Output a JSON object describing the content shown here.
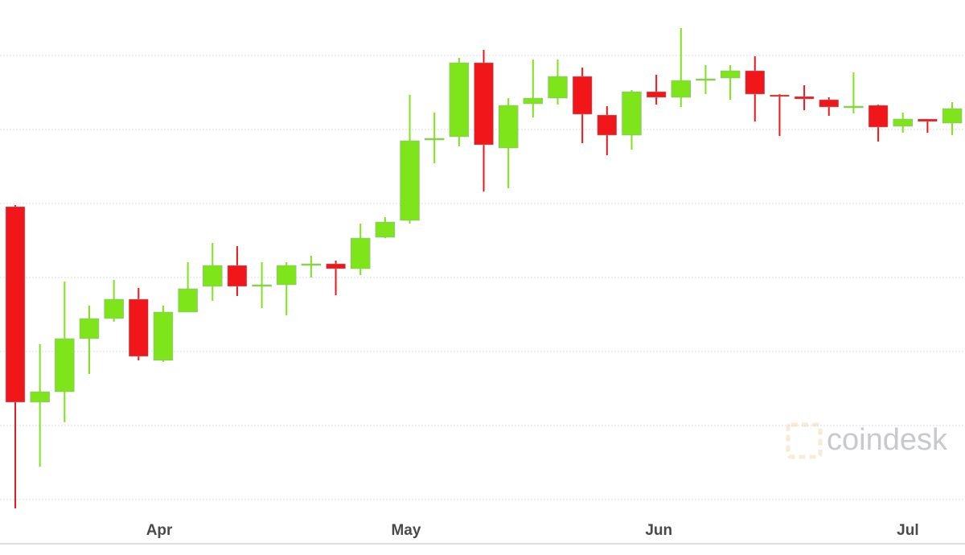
{
  "chart_data": {
    "type": "candlestick",
    "x": [
      0,
      1,
      2,
      3,
      4,
      5,
      6,
      7,
      8,
      9,
      10,
      11,
      12,
      13,
      14,
      15,
      16,
      17,
      18,
      19,
      20,
      21,
      22,
      23,
      24,
      25,
      26,
      27,
      28,
      29,
      30,
      31,
      32,
      33,
      34,
      35,
      36,
      37,
      38
    ],
    "open": [
      364,
      121,
      134,
      200,
      225,
      249,
      173,
      233,
      265,
      291,
      266,
      267,
      292,
      293,
      287,
      326,
      347,
      447,
      451,
      543,
      437,
      492,
      499,
      526,
      478,
      453,
      507,
      500,
      522,
      524,
      533,
      503,
      501,
      497,
      488,
      490,
      464,
      473,
      468
    ],
    "high": [
      366,
      193,
      271,
      241,
      273,
      263,
      241,
      295,
      319,
      315,
      295,
      295,
      303,
      297,
      343,
      351,
      503,
      481,
      549,
      559,
      499,
      547,
      547,
      537,
      489,
      509,
      528,
      586,
      540,
      540,
      551,
      504,
      515,
      500,
      531,
      491,
      481,
      473,
      494
    ],
    "low": [
      -11,
      41,
      96,
      156,
      221,
      173,
      171,
      233,
      247,
      253,
      238,
      229,
      276,
      254,
      279,
      325,
      343,
      418,
      439,
      383,
      387,
      475,
      491,
      443,
      428,
      435,
      491,
      488,
      504,
      497,
      470,
      452,
      484,
      477,
      480,
      445,
      456,
      456,
      453
    ],
    "close": [
      121,
      134,
      200,
      225,
      249,
      178,
      233,
      262,
      291,
      265,
      267,
      291,
      293,
      287,
      325,
      345,
      446,
      449,
      543,
      441,
      490,
      499,
      526,
      479,
      453,
      507,
      500,
      521,
      523,
      533,
      504,
      502,
      498,
      488,
      489,
      463,
      473,
      470,
      486
    ],
    "up_color": "#7fe51b",
    "down_color": "#f0161a",
    "xlim": [
      -0.62,
      38.52
    ],
    "xticks": [
      {
        "value": 5.84,
        "label": "Apr"
      },
      {
        "value": 15.85,
        "label": "May"
      },
      {
        "value": 26.1,
        "label": "Jun"
      },
      {
        "value": 36.2,
        "label": "Jul"
      }
    ],
    "ylim": [
      -54,
      621
    ],
    "yticks": [
      0,
      92,
      184,
      276,
      368,
      460,
      552
    ],
    "grid": true,
    "watermark": "coindesk"
  }
}
